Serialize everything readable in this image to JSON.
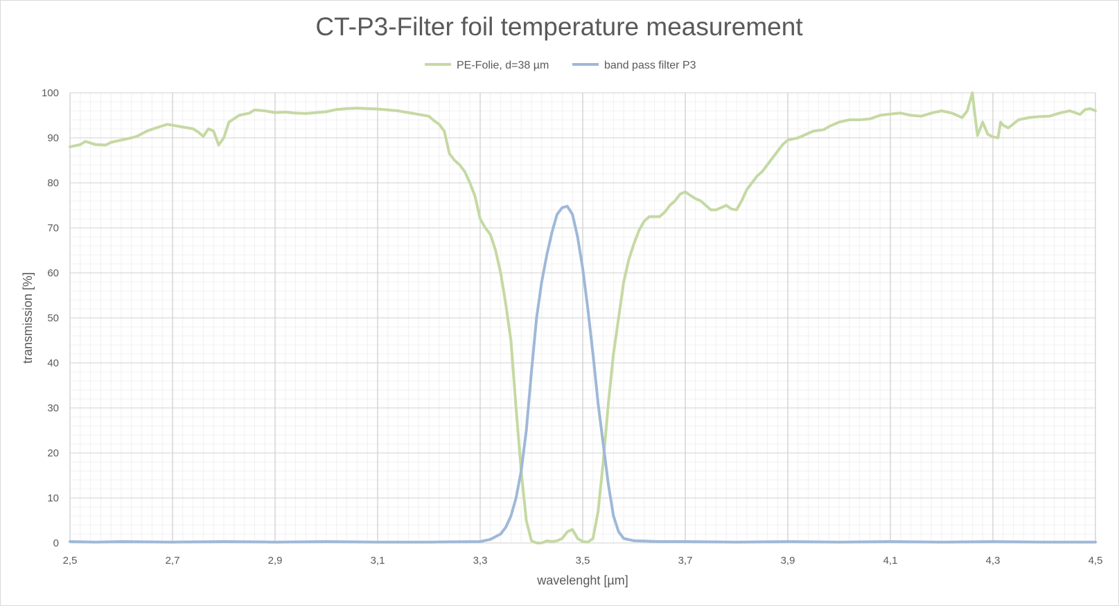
{
  "chart_data": {
    "type": "line",
    "title": "CT-P3-Filter foil temperature measurement",
    "xlabel": "wavelenght [µm]",
    "ylabel": "transmission [%]",
    "xlim": [
      2.5,
      4.5
    ],
    "ylim": [
      0,
      100
    ],
    "x_ticks": [
      2.5,
      2.7,
      2.9,
      3.1,
      3.3,
      3.5,
      3.7,
      3.9,
      4.1,
      4.3,
      4.5
    ],
    "x_tick_labels": [
      "2,5",
      "2,7",
      "2,9",
      "3,1",
      "3,3",
      "3,5",
      "3,7",
      "3,9",
      "4,1",
      "4,3",
      "4,5"
    ],
    "y_ticks": [
      0,
      10,
      20,
      30,
      40,
      50,
      60,
      70,
      80,
      90,
      100
    ],
    "y_tick_labels": [
      "0",
      "10",
      "20",
      "30",
      "40",
      "50",
      "60",
      "70",
      "80",
      "90",
      "100"
    ],
    "grid": true,
    "legend_position": "top-center",
    "series": [
      {
        "name": "PE-Folie, d=38 µm",
        "color": "#c5d9a3",
        "points": [
          [
            2.5,
            88
          ],
          [
            2.52,
            88.5
          ],
          [
            2.53,
            89.2
          ],
          [
            2.55,
            88.5
          ],
          [
            2.57,
            88.4
          ],
          [
            2.58,
            89
          ],
          [
            2.6,
            89.5
          ],
          [
            2.62,
            90
          ],
          [
            2.63,
            90.3
          ],
          [
            2.65,
            91.5
          ],
          [
            2.67,
            92.3
          ],
          [
            2.69,
            93
          ],
          [
            2.7,
            92.8
          ],
          [
            2.72,
            92.4
          ],
          [
            2.74,
            92
          ],
          [
            2.75,
            91.3
          ],
          [
            2.76,
            90.3
          ],
          [
            2.77,
            92
          ],
          [
            2.78,
            91.5
          ],
          [
            2.79,
            88.4
          ],
          [
            2.8,
            90
          ],
          [
            2.81,
            93.5
          ],
          [
            2.83,
            95
          ],
          [
            2.85,
            95.5
          ],
          [
            2.86,
            96.2
          ],
          [
            2.88,
            96
          ],
          [
            2.9,
            95.6
          ],
          [
            2.92,
            95.7
          ],
          [
            2.94,
            95.5
          ],
          [
            2.96,
            95.4
          ],
          [
            2.98,
            95.6
          ],
          [
            3.0,
            95.8
          ],
          [
            3.02,
            96.3
          ],
          [
            3.04,
            96.5
          ],
          [
            3.06,
            96.6
          ],
          [
            3.08,
            96.5
          ],
          [
            3.1,
            96.4
          ],
          [
            3.12,
            96.2
          ],
          [
            3.14,
            96
          ],
          [
            3.16,
            95.6
          ],
          [
            3.18,
            95.2
          ],
          [
            3.2,
            94.8
          ],
          [
            3.21,
            93.8
          ],
          [
            3.22,
            93
          ],
          [
            3.23,
            91.5
          ],
          [
            3.24,
            86.5
          ],
          [
            3.25,
            85
          ],
          [
            3.26,
            84
          ],
          [
            3.27,
            82.5
          ],
          [
            3.28,
            80
          ],
          [
            3.29,
            77
          ],
          [
            3.3,
            72
          ],
          [
            3.31,
            70
          ],
          [
            3.32,
            68.5
          ],
          [
            3.33,
            65
          ],
          [
            3.34,
            60
          ],
          [
            3.35,
            53
          ],
          [
            3.36,
            45
          ],
          [
            3.37,
            30
          ],
          [
            3.38,
            16
          ],
          [
            3.39,
            5
          ],
          [
            3.4,
            0.5
          ],
          [
            3.41,
            0
          ],
          [
            3.42,
            0
          ],
          [
            3.43,
            0.5
          ],
          [
            3.44,
            0.3
          ],
          [
            3.45,
            0.5
          ],
          [
            3.46,
            1
          ],
          [
            3.47,
            2.5
          ],
          [
            3.48,
            3
          ],
          [
            3.49,
            1
          ],
          [
            3.5,
            0.3
          ],
          [
            3.51,
            0.2
          ],
          [
            3.52,
            1
          ],
          [
            3.53,
            7
          ],
          [
            3.54,
            18
          ],
          [
            3.55,
            31
          ],
          [
            3.56,
            42
          ],
          [
            3.57,
            50
          ],
          [
            3.58,
            58
          ],
          [
            3.59,
            63
          ],
          [
            3.6,
            66.5
          ],
          [
            3.61,
            69.5
          ],
          [
            3.62,
            71.5
          ],
          [
            3.63,
            72.5
          ],
          [
            3.65,
            72.5
          ],
          [
            3.66,
            73.5
          ],
          [
            3.67,
            75
          ],
          [
            3.68,
            76
          ],
          [
            3.69,
            77.5
          ],
          [
            3.7,
            78
          ],
          [
            3.71,
            77.2
          ],
          [
            3.72,
            76.5
          ],
          [
            3.73,
            76
          ],
          [
            3.74,
            75
          ],
          [
            3.75,
            74
          ],
          [
            3.76,
            74
          ],
          [
            3.77,
            74.5
          ],
          [
            3.78,
            75
          ],
          [
            3.79,
            74.2
          ],
          [
            3.8,
            74
          ],
          [
            3.81,
            76
          ],
          [
            3.82,
            78.5
          ],
          [
            3.83,
            80
          ],
          [
            3.84,
            81.5
          ],
          [
            3.85,
            82.5
          ],
          [
            3.86,
            84
          ],
          [
            3.87,
            85.5
          ],
          [
            3.88,
            87
          ],
          [
            3.89,
            88.5
          ],
          [
            3.9,
            89.5
          ],
          [
            3.92,
            90
          ],
          [
            3.94,
            91
          ],
          [
            3.95,
            91.5
          ],
          [
            3.97,
            91.8
          ],
          [
            3.98,
            92.5
          ],
          [
            4.0,
            93.5
          ],
          [
            4.02,
            94
          ],
          [
            4.04,
            94
          ],
          [
            4.06,
            94.2
          ],
          [
            4.08,
            95
          ],
          [
            4.1,
            95.3
          ],
          [
            4.12,
            95.5
          ],
          [
            4.14,
            95
          ],
          [
            4.16,
            94.8
          ],
          [
            4.18,
            95.5
          ],
          [
            4.2,
            96
          ],
          [
            4.22,
            95.5
          ],
          [
            4.23,
            95
          ],
          [
            4.24,
            94.5
          ],
          [
            4.25,
            96
          ],
          [
            4.26,
            100
          ],
          [
            4.265,
            95
          ],
          [
            4.27,
            90.5
          ],
          [
            4.28,
            93.5
          ],
          [
            4.29,
            90.8
          ],
          [
            4.3,
            90.2
          ],
          [
            4.31,
            90
          ],
          [
            4.315,
            93.5
          ],
          [
            4.32,
            92.8
          ],
          [
            4.33,
            92.2
          ],
          [
            4.35,
            94
          ],
          [
            4.37,
            94.5
          ],
          [
            4.39,
            94.7
          ],
          [
            4.41,
            94.8
          ],
          [
            4.43,
            95.5
          ],
          [
            4.45,
            96
          ],
          [
            4.47,
            95.2
          ],
          [
            4.48,
            96.3
          ],
          [
            4.49,
            96.5
          ],
          [
            4.5,
            96
          ]
        ]
      },
      {
        "name": "band pass filter P3",
        "color": "#9fb8d8",
        "points": [
          [
            2.5,
            0.3
          ],
          [
            2.55,
            0.2
          ],
          [
            2.6,
            0.3
          ],
          [
            2.7,
            0.2
          ],
          [
            2.8,
            0.3
          ],
          [
            2.9,
            0.2
          ],
          [
            3.0,
            0.3
          ],
          [
            3.1,
            0.2
          ],
          [
            3.2,
            0.2
          ],
          [
            3.3,
            0.3
          ],
          [
            3.32,
            0.8
          ],
          [
            3.34,
            2
          ],
          [
            3.35,
            3.5
          ],
          [
            3.36,
            6
          ],
          [
            3.37,
            10
          ],
          [
            3.38,
            16
          ],
          [
            3.39,
            25
          ],
          [
            3.4,
            38
          ],
          [
            3.41,
            50
          ],
          [
            3.42,
            58
          ],
          [
            3.43,
            64
          ],
          [
            3.44,
            69
          ],
          [
            3.45,
            73
          ],
          [
            3.46,
            74.5
          ],
          [
            3.47,
            74.8
          ],
          [
            3.48,
            73
          ],
          [
            3.49,
            68
          ],
          [
            3.5,
            61
          ],
          [
            3.51,
            52
          ],
          [
            3.52,
            42
          ],
          [
            3.53,
            31
          ],
          [
            3.54,
            22
          ],
          [
            3.55,
            13
          ],
          [
            3.56,
            6
          ],
          [
            3.57,
            2.5
          ],
          [
            3.58,
            1
          ],
          [
            3.6,
            0.5
          ],
          [
            3.65,
            0.3
          ],
          [
            3.7,
            0.3
          ],
          [
            3.8,
            0.2
          ],
          [
            3.9,
            0.3
          ],
          [
            4.0,
            0.2
          ],
          [
            4.1,
            0.3
          ],
          [
            4.2,
            0.2
          ],
          [
            4.3,
            0.3
          ],
          [
            4.4,
            0.2
          ],
          [
            4.5,
            0.2
          ]
        ]
      }
    ]
  }
}
